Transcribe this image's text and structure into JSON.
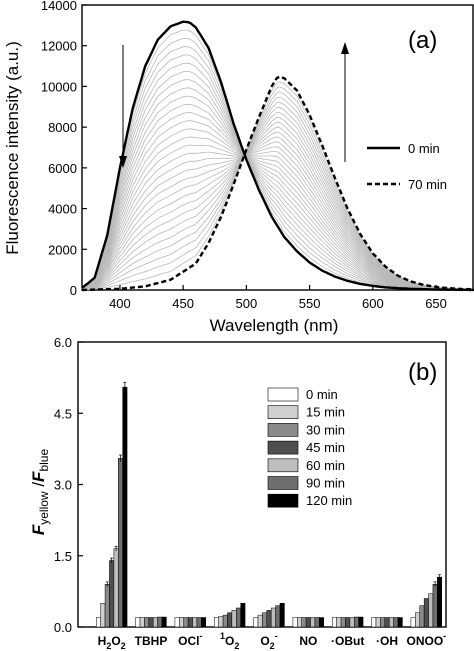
{
  "chart_data": [
    {
      "type": "line",
      "panel_label": "(a)",
      "xlabel": "Wavelength (nm)",
      "ylabel": "Fluorescence intensity (a.u.)",
      "xlim": [
        370,
        680
      ],
      "ylim": [
        0,
        14000
      ],
      "xticks": [
        400,
        450,
        500,
        550,
        600,
        650
      ],
      "yticks": [
        0,
        2000,
        4000,
        6000,
        8000,
        10000,
        12000,
        14000
      ],
      "series": [
        {
          "name": "0 min",
          "style": "solid",
          "x": [
            370,
            380,
            390,
            400,
            410,
            420,
            430,
            440,
            450,
            455,
            460,
            470,
            480,
            490,
            500,
            510,
            520,
            530,
            540,
            550,
            560,
            570,
            580,
            590,
            600,
            610,
            620,
            630,
            640,
            650,
            660,
            670,
            680
          ],
          "y": [
            100,
            600,
            2700,
            6000,
            8900,
            11000,
            12300,
            12950,
            13180,
            13150,
            12900,
            11900,
            10200,
            8150,
            6400,
            4900,
            3600,
            2600,
            1900,
            1350,
            950,
            660,
            450,
            300,
            200,
            130,
            90,
            60,
            40,
            25,
            15,
            10,
            5
          ]
        },
        {
          "name": "70 min",
          "style": "dashed",
          "x": [
            370,
            400,
            420,
            440,
            460,
            470,
            480,
            490,
            500,
            510,
            520,
            525,
            530,
            540,
            550,
            560,
            570,
            580,
            590,
            600,
            610,
            620,
            630,
            640,
            650,
            660,
            670,
            680
          ],
          "y": [
            0,
            60,
            180,
            500,
            1300,
            2300,
            3600,
            5200,
            6900,
            8500,
            10000,
            10500,
            10400,
            9800,
            8600,
            7100,
            5500,
            4000,
            2750,
            1800,
            1150,
            700,
            420,
            250,
            150,
            90,
            50,
            30
          ]
        }
      ],
      "intermediate_curves": 30,
      "legend_position": "right",
      "arrows": [
        "down at ~420 nm",
        "up at ~575 nm"
      ]
    },
    {
      "type": "bar",
      "panel_label": "(b)",
      "ylim": [
        0,
        6.0
      ],
      "yticks": [
        0.0,
        1.5,
        3.0,
        4.5,
        6.0
      ],
      "categories": [
        "H2O2",
        "TBHP",
        "OCl-",
        "1O2",
        "O2-",
        "NO",
        "·OBut",
        "·OH",
        "ONOO-"
      ],
      "series": [
        {
          "name": "0 min",
          "color": "#ffffff",
          "values": [
            0.2,
            0.2,
            0.2,
            0.2,
            0.2,
            0.2,
            0.2,
            0.2,
            0.2
          ]
        },
        {
          "name": "15 min",
          "color": "#cfcfcf",
          "values": [
            0.5,
            0.2,
            0.2,
            0.22,
            0.25,
            0.2,
            0.2,
            0.2,
            0.3
          ]
        },
        {
          "name": "30 min",
          "color": "#8a8a8a",
          "values": [
            0.9,
            0.2,
            0.2,
            0.25,
            0.3,
            0.2,
            0.2,
            0.2,
            0.45
          ]
        },
        {
          "name": "45 min",
          "color": "#4f4f4f",
          "values": [
            1.4,
            0.2,
            0.2,
            0.3,
            0.35,
            0.2,
            0.2,
            0.2,
            0.6
          ]
        },
        {
          "name": "60 min",
          "color": "#bdbdbd",
          "values": [
            1.65,
            0.2,
            0.2,
            0.35,
            0.4,
            0.2,
            0.2,
            0.2,
            0.7
          ]
        },
        {
          "name": "90 min",
          "color": "#6f6f6f",
          "values": [
            3.55,
            0.21,
            0.2,
            0.4,
            0.45,
            0.2,
            0.21,
            0.2,
            0.9
          ]
        },
        {
          "name": "120 min",
          "color": "#000000",
          "values": [
            5.05,
            0.21,
            0.2,
            0.5,
            0.5,
            0.2,
            0.21,
            0.2,
            1.05
          ]
        }
      ],
      "legend_position": "top-right"
    }
  ],
  "texts": {
    "a_label": "(a)",
    "b_label": "(b)",
    "a_xlabel": "Wavelength (nm)",
    "a_ylabel": "Fluorescence intensity (a.u.)",
    "a_legend_0": "0 min",
    "a_legend_70": "70 min"
  }
}
